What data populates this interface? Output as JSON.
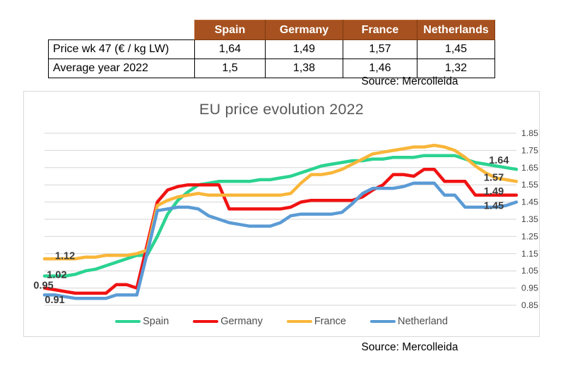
{
  "table": {
    "header": {
      "bg_color": "#a6511f",
      "columns": [
        "Spain",
        "Germany",
        "France",
        "Netherlands"
      ]
    },
    "rows": [
      {
        "label": "Price wk 47 (€ / kg LW)",
        "values": [
          "1,64",
          "1,49",
          "1,57",
          "1,45"
        ]
      },
      {
        "label": "Average year 2022",
        "values": [
          "1,5",
          "1,38",
          "1,46",
          "1,32"
        ]
      }
    ],
    "source": "Source: Mercolleida"
  },
  "chart": {
    "source": "Source: Mercolleida"
  },
  "chart_data": {
    "type": "line",
    "title": "EU price evolution 2022",
    "x_unit": "week of 2022 (1-47), axis unlabeled",
    "x": [
      1,
      2,
      3,
      4,
      5,
      6,
      7,
      8,
      9,
      10,
      11,
      12,
      13,
      14,
      15,
      16,
      17,
      18,
      19,
      20,
      21,
      22,
      23,
      24,
      25,
      26,
      27,
      28,
      29,
      30,
      31,
      32,
      33,
      34,
      35,
      36,
      37,
      38,
      39,
      40,
      41,
      42,
      43,
      44,
      45,
      46,
      47
    ],
    "ylim": [
      0.85,
      1.85
    ],
    "yticks": [
      "1.85",
      "1.75",
      "1.65",
      "1.55",
      "1.45",
      "1.35",
      "1.25",
      "1.15",
      "1.05",
      "0.95",
      "0.85"
    ],
    "grid": true,
    "gridline_color": "#d6d6d6",
    "legend_position": "bottom",
    "series": [
      {
        "name": "Spain",
        "color": "#2bd391",
        "values": [
          1.02,
          1.02,
          1.02,
          1.03,
          1.05,
          1.06,
          1.08,
          1.1,
          1.12,
          1.14,
          1.14,
          1.25,
          1.38,
          1.46,
          1.51,
          1.55,
          1.56,
          1.57,
          1.57,
          1.57,
          1.57,
          1.58,
          1.58,
          1.59,
          1.6,
          1.62,
          1.64,
          1.66,
          1.67,
          1.68,
          1.69,
          1.69,
          1.7,
          1.7,
          1.71,
          1.71,
          1.71,
          1.72,
          1.72,
          1.72,
          1.72,
          1.7,
          1.68,
          1.67,
          1.66,
          1.65,
          1.64
        ]
      },
      {
        "name": "Germany",
        "color": "#f01212",
        "values": [
          0.95,
          0.94,
          0.93,
          0.92,
          0.92,
          0.92,
          0.92,
          0.97,
          0.97,
          0.95,
          1.2,
          1.45,
          1.52,
          1.54,
          1.55,
          1.55,
          1.55,
          1.55,
          1.41,
          1.41,
          1.41,
          1.41,
          1.41,
          1.41,
          1.42,
          1.45,
          1.46,
          1.46,
          1.46,
          1.46,
          1.46,
          1.48,
          1.52,
          1.55,
          1.61,
          1.61,
          1.6,
          1.64,
          1.64,
          1.57,
          1.57,
          1.57,
          1.49,
          1.49,
          1.49,
          1.49,
          1.49
        ]
      },
      {
        "name": "France",
        "color": "#f9b63a",
        "values": [
          1.12,
          1.12,
          1.12,
          1.12,
          1.13,
          1.13,
          1.14,
          1.14,
          1.14,
          1.15,
          1.17,
          1.43,
          1.46,
          1.48,
          1.49,
          1.5,
          1.49,
          1.49,
          1.49,
          1.49,
          1.49,
          1.49,
          1.49,
          1.49,
          1.5,
          1.56,
          1.61,
          1.61,
          1.62,
          1.64,
          1.67,
          1.7,
          1.73,
          1.74,
          1.75,
          1.76,
          1.77,
          1.77,
          1.78,
          1.77,
          1.75,
          1.71,
          1.66,
          1.62,
          1.59,
          1.58,
          1.57
        ]
      },
      {
        "name": "Netherland",
        "color": "#5b9bd5",
        "values": [
          0.91,
          0.91,
          0.9,
          0.89,
          0.89,
          0.89,
          0.89,
          0.91,
          0.91,
          0.91,
          1.15,
          1.4,
          1.41,
          1.42,
          1.42,
          1.41,
          1.37,
          1.35,
          1.33,
          1.32,
          1.31,
          1.31,
          1.31,
          1.33,
          1.37,
          1.38,
          1.38,
          1.38,
          1.38,
          1.39,
          1.44,
          1.5,
          1.53,
          1.53,
          1.53,
          1.54,
          1.56,
          1.56,
          1.56,
          1.49,
          1.49,
          1.42,
          1.42,
          1.42,
          1.42,
          1.43,
          1.45
        ]
      }
    ],
    "annotations": [
      {
        "text": "1.12",
        "week": 3.0,
        "value": 1.135
      },
      {
        "text": "1.02",
        "week": 2.2,
        "value": 1.025
      },
      {
        "text": "0.95",
        "week": 0.9,
        "value": 0.962
      },
      {
        "text": "0.91",
        "week": 2.0,
        "value": 0.878
      },
      {
        "text": "1.64",
        "week": 45.3,
        "value": 1.69
      },
      {
        "text": "1.57",
        "week": 44.8,
        "value": 1.59
      },
      {
        "text": "1.49",
        "week": 44.8,
        "value": 1.51
      },
      {
        "text": "1.45",
        "week": 44.8,
        "value": 1.425
      }
    ],
    "label_color": "#3b3b3b",
    "tick_color": "#444444"
  }
}
